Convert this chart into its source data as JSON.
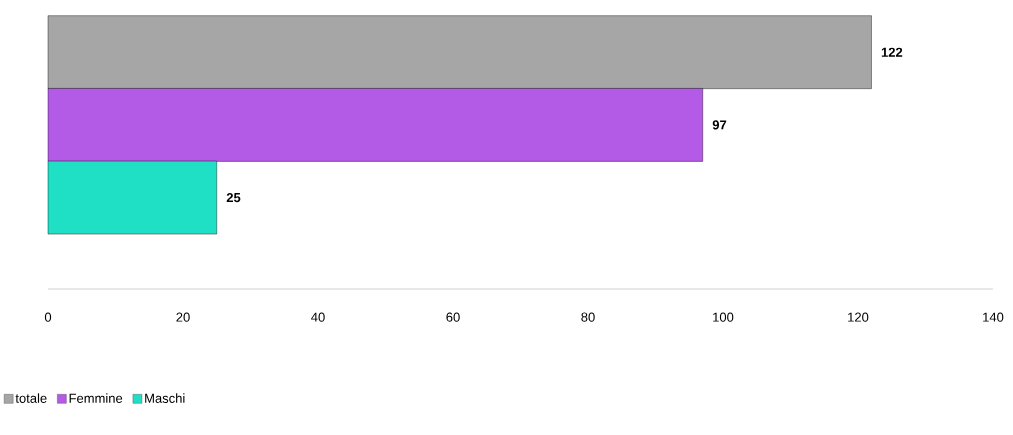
{
  "chart_data": {
    "type": "bar",
    "orientation": "horizontal",
    "categories": [
      null
    ],
    "series": [
      {
        "name": "totale",
        "color": "#a6a6a6",
        "values": [
          122
        ]
      },
      {
        "name": "Femmine",
        "color": "#b35ae6",
        "values": [
          97
        ]
      },
      {
        "name": "Maschi",
        "color": "#1fe0c4",
        "values": [
          25
        ]
      }
    ],
    "xlim": [
      0,
      140
    ],
    "xticks": [
      0,
      20,
      40,
      60,
      80,
      100,
      120,
      140
    ],
    "data_labels": true,
    "legend": "bottom left"
  }
}
